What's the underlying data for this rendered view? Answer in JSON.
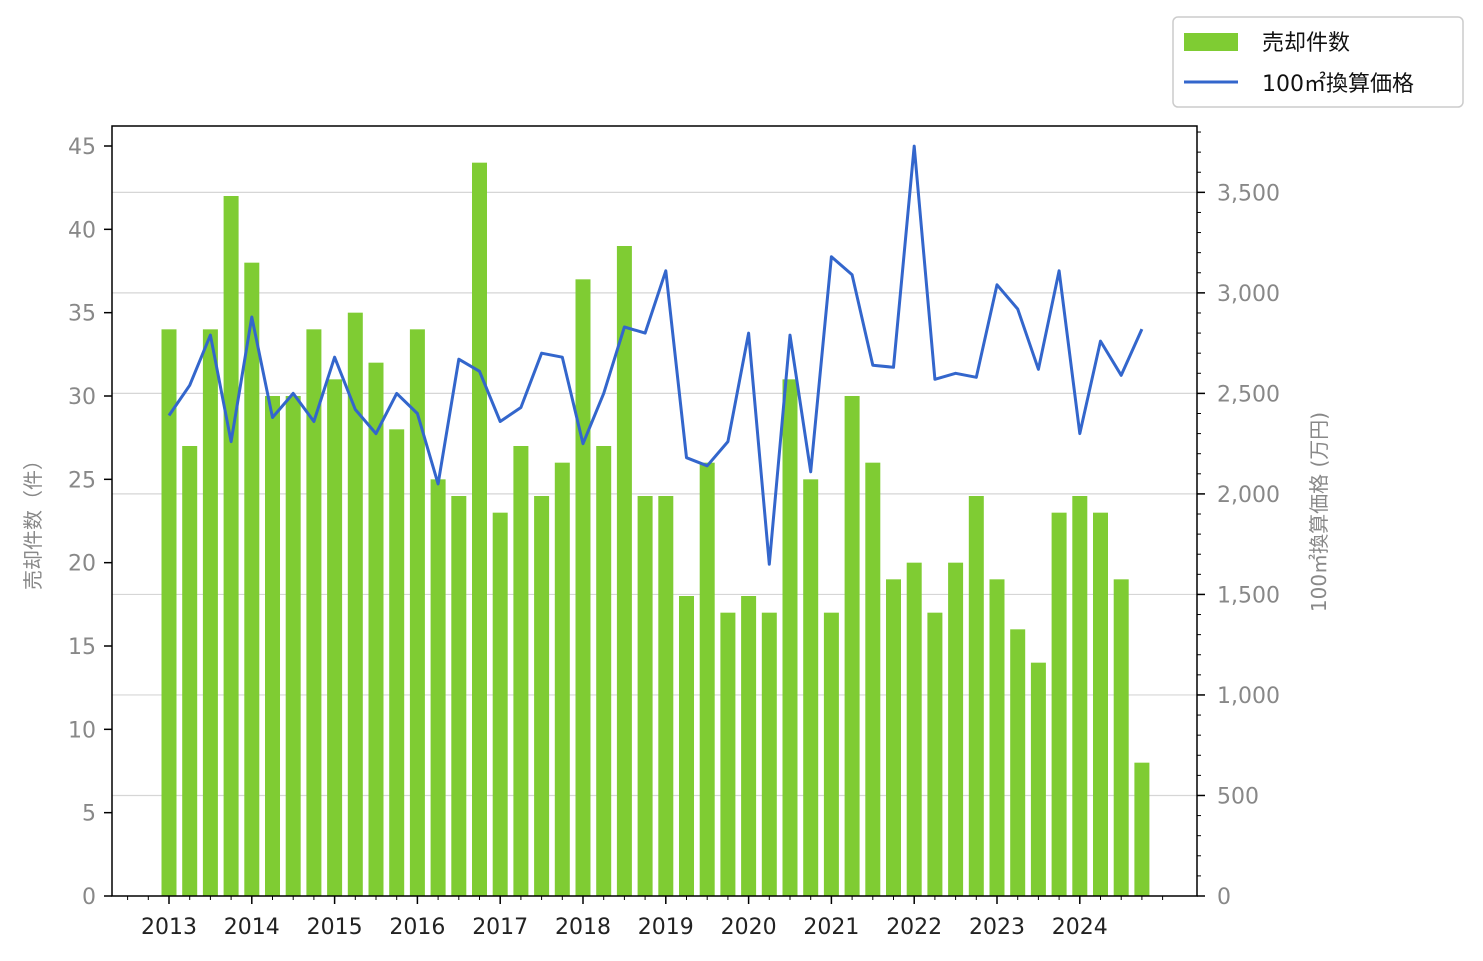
{
  "chart_data": {
    "type": "bar",
    "x_tick_labels": [
      "2013",
      "2014",
      "2015",
      "2016",
      "2017",
      "2018",
      "2019",
      "2020",
      "2021",
      "2022",
      "2023",
      "2024"
    ],
    "periods": [
      "2013Q1",
      "2013Q2",
      "2013Q3",
      "2013Q4",
      "2014Q1",
      "2014Q2",
      "2014Q3",
      "2014Q4",
      "2015Q1",
      "2015Q2",
      "2015Q3",
      "2015Q4",
      "2016Q1",
      "2016Q2",
      "2016Q3",
      "2016Q4",
      "2017Q1",
      "2017Q2",
      "2017Q3",
      "2017Q4",
      "2018Q1",
      "2018Q2",
      "2018Q3",
      "2018Q4",
      "2019Q1",
      "2019Q2",
      "2019Q3",
      "2019Q4",
      "2020Q1",
      "2020Q2",
      "2020Q3",
      "2020Q4",
      "2021Q1",
      "2021Q2",
      "2021Q3",
      "2021Q4",
      "2022Q1",
      "2022Q2",
      "2022Q3",
      "2022Q4",
      "2023Q1",
      "2023Q2",
      "2023Q3",
      "2023Q4",
      "2024Q1",
      "2024Q2",
      "2024Q3",
      "2024Q4"
    ],
    "series": [
      {
        "name": "売却件数",
        "type": "bar",
        "axis": "left",
        "color": "#7fcc33",
        "values": [
          34,
          27,
          34,
          42,
          38,
          30,
          30,
          34,
          31,
          35,
          32,
          28,
          34,
          25,
          24,
          44,
          23,
          27,
          24,
          26,
          37,
          27,
          39,
          24,
          24,
          18,
          26,
          17,
          18,
          17,
          31,
          25,
          17,
          30,
          26,
          19,
          20,
          17,
          20,
          24,
          19,
          16,
          14,
          23,
          24,
          23,
          19,
          8
        ]
      },
      {
        "name": "100㎡換算価格",
        "type": "line",
        "axis": "right",
        "color": "#3366cc",
        "values": [
          2390,
          2540,
          2790,
          2260,
          2880,
          2380,
          2500,
          2360,
          2680,
          2420,
          2300,
          2500,
          2400,
          2050,
          2670,
          2610,
          2360,
          2430,
          2700,
          2680,
          2250,
          2500,
          2830,
          2800,
          3110,
          2180,
          2140,
          2260,
          2800,
          1650,
          2790,
          2110,
          3180,
          3090,
          2640,
          2630,
          3730,
          2570,
          2600,
          2580,
          3040,
          2920,
          2620,
          3110,
          2300,
          2760,
          2590,
          2820
        ]
      }
    ],
    "ylabel_left": "売却件数（件）",
    "ylabel_right": "100㎡換算価格 (万円)",
    "ylim_left": [
      0,
      46.2
    ],
    "ylim_right": [
      0,
      3830
    ],
    "yticks_left": [
      0,
      5,
      10,
      15,
      20,
      25,
      30,
      35,
      40,
      45
    ],
    "yticks_right": [
      0,
      500,
      1000,
      1500,
      2000,
      2500,
      3000,
      3500
    ],
    "yticks_right_labels": [
      "0",
      "500",
      "1,000",
      "1,500",
      "2,000",
      "2,500",
      "3,000",
      "3,500"
    ],
    "grid": "horizontal (right axis)",
    "legend_position": "top-right, outside plot"
  },
  "legend": {
    "bar_label": "売却件数",
    "line_label": "100㎡換算価格"
  }
}
